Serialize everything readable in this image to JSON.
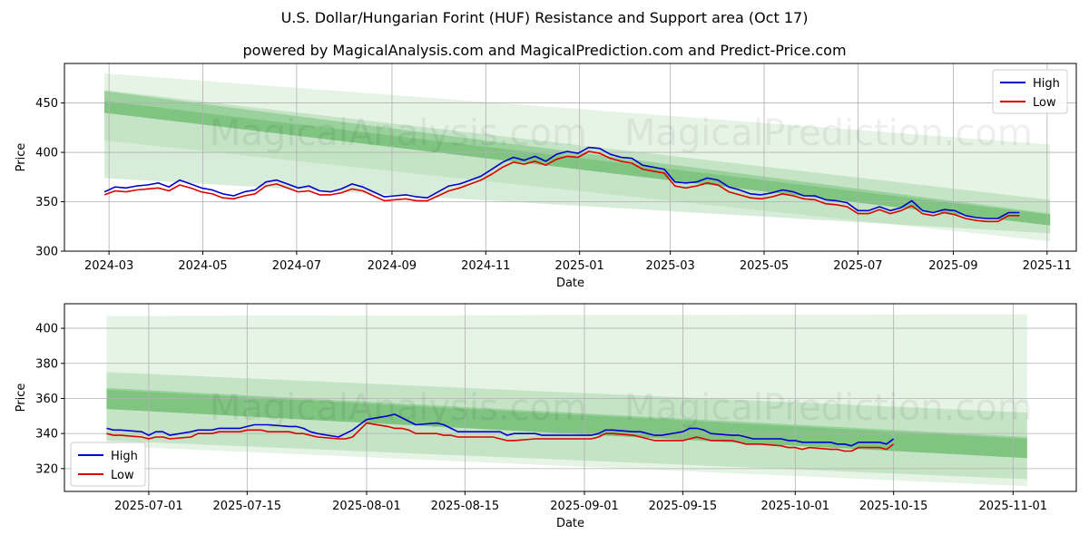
{
  "title": "U.S. Dollar/Hungarian Forint (HUF) Resistance and Support area (Oct 17)",
  "subtitle": "powered by MagicalAnalysis.com and MagicalPrediction.com and Predict-Price.com",
  "watermarks": [
    "MagicalAnalysis.com",
    "MagicalPrediction.com"
  ],
  "colors": {
    "high": "#0000cc",
    "low": "#dd0000",
    "band": "#4caf50",
    "grid": "#b0b0b0"
  },
  "chart_data": [
    {
      "type": "line",
      "xlabel": "Date",
      "ylabel": "Price",
      "xlim": [
        "2024-02-01",
        "2025-11-20"
      ],
      "ylim": [
        300,
        490
      ],
      "xticks": [
        "2024-03",
        "2024-05",
        "2024-07",
        "2024-09",
        "2024-11",
        "2025-01",
        "2025-03",
        "2025-05",
        "2025-07",
        "2025-09",
        "2025-11"
      ],
      "yticks": [
        300,
        350,
        400,
        450
      ],
      "legend": {
        "position": "top-right",
        "entries": [
          "High",
          "Low"
        ]
      },
      "bands": [
        {
          "x": [
            "2024-02-27",
            "2025-11-03"
          ],
          "upper": [
            480,
            408
          ],
          "lower": [
            412,
            310
          ]
        },
        {
          "x": [
            "2024-02-27",
            "2025-11-03"
          ],
          "upper": [
            463,
            352
          ],
          "lower": [
            374,
            318
          ]
        },
        {
          "x": [
            "2024-02-27",
            "2025-11-03"
          ],
          "upper": [
            462,
            338
          ],
          "lower": [
            440,
            326
          ]
        },
        {
          "x": [
            "2024-02-27",
            "2025-11-03"
          ],
          "upper": [
            452,
            337
          ],
          "lower": [
            440,
            326
          ]
        }
      ],
      "series": [
        {
          "name": "High",
          "x": [
            "2024-02-27",
            "2024-03-05",
            "2024-03-12",
            "2024-03-19",
            "2024-03-26",
            "2024-04-02",
            "2024-04-09",
            "2024-04-16",
            "2024-04-23",
            "2024-04-30",
            "2024-05-07",
            "2024-05-14",
            "2024-05-21",
            "2024-05-28",
            "2024-06-04",
            "2024-06-11",
            "2024-06-18",
            "2024-06-25",
            "2024-07-02",
            "2024-07-09",
            "2024-07-16",
            "2024-07-23",
            "2024-07-30",
            "2024-08-06",
            "2024-08-13",
            "2024-08-20",
            "2024-08-27",
            "2024-09-03",
            "2024-09-10",
            "2024-09-17",
            "2024-09-24",
            "2024-10-01",
            "2024-10-08",
            "2024-10-15",
            "2024-10-22",
            "2024-10-29",
            "2024-11-05",
            "2024-11-12",
            "2024-11-19",
            "2024-11-26",
            "2024-12-03",
            "2024-12-10",
            "2024-12-17",
            "2024-12-24",
            "2024-12-31",
            "2025-01-07",
            "2025-01-14",
            "2025-01-21",
            "2025-01-28",
            "2025-02-04",
            "2025-02-11",
            "2025-02-18",
            "2025-02-25",
            "2025-03-04",
            "2025-03-11",
            "2025-03-18",
            "2025-03-25",
            "2025-04-01",
            "2025-04-08",
            "2025-04-15",
            "2025-04-22",
            "2025-04-29",
            "2025-05-06",
            "2025-05-13",
            "2025-05-20",
            "2025-05-27",
            "2025-06-03",
            "2025-06-10",
            "2025-06-17",
            "2025-06-24",
            "2025-07-01",
            "2025-07-08",
            "2025-07-15",
            "2025-07-22",
            "2025-07-29",
            "2025-08-05",
            "2025-08-12",
            "2025-08-19",
            "2025-08-26",
            "2025-09-02",
            "2025-09-09",
            "2025-09-16",
            "2025-09-23",
            "2025-09-30",
            "2025-10-07",
            "2025-10-14"
          ],
          "values": [
            360,
            365,
            364,
            366,
            367,
            369,
            365,
            372,
            368,
            364,
            362,
            358,
            356,
            360,
            362,
            370,
            372,
            368,
            364,
            366,
            361,
            360,
            363,
            368,
            365,
            360,
            355,
            356,
            357,
            355,
            354,
            360,
            366,
            368,
            372,
            376,
            383,
            390,
            395,
            392,
            396,
            391,
            398,
            401,
            399,
            405,
            404,
            398,
            395,
            394,
            387,
            385,
            383,
            370,
            369,
            370,
            374,
            372,
            365,
            362,
            358,
            357,
            359,
            362,
            360,
            356,
            356,
            352,
            351,
            349,
            341,
            341,
            345,
            341,
            344,
            351,
            341,
            339,
            342,
            341,
            336,
            334,
            333,
            333,
            339,
            339
          ]
        },
        {
          "name": "Low",
          "x": [
            "2024-02-27",
            "2024-03-05",
            "2024-03-12",
            "2024-03-19",
            "2024-03-26",
            "2024-04-02",
            "2024-04-09",
            "2024-04-16",
            "2024-04-23",
            "2024-04-30",
            "2024-05-07",
            "2024-05-14",
            "2024-05-21",
            "2024-05-28",
            "2024-06-04",
            "2024-06-11",
            "2024-06-18",
            "2024-06-25",
            "2024-07-02",
            "2024-07-09",
            "2024-07-16",
            "2024-07-23",
            "2024-07-30",
            "2024-08-06",
            "2024-08-13",
            "2024-08-20",
            "2024-08-27",
            "2024-09-03",
            "2024-09-10",
            "2024-09-17",
            "2024-09-24",
            "2024-10-01",
            "2024-10-08",
            "2024-10-15",
            "2024-10-22",
            "2024-10-29",
            "2024-11-05",
            "2024-11-12",
            "2024-11-19",
            "2024-11-26",
            "2024-12-03",
            "2024-12-10",
            "2024-12-17",
            "2024-12-24",
            "2024-12-31",
            "2025-01-07",
            "2025-01-14",
            "2025-01-21",
            "2025-01-28",
            "2025-02-04",
            "2025-02-11",
            "2025-02-18",
            "2025-02-25",
            "2025-03-04",
            "2025-03-11",
            "2025-03-18",
            "2025-03-25",
            "2025-04-01",
            "2025-04-08",
            "2025-04-15",
            "2025-04-22",
            "2025-04-29",
            "2025-05-06",
            "2025-05-13",
            "2025-05-20",
            "2025-05-27",
            "2025-06-03",
            "2025-06-10",
            "2025-06-17",
            "2025-06-24",
            "2025-07-01",
            "2025-07-08",
            "2025-07-15",
            "2025-07-22",
            "2025-07-29",
            "2025-08-05",
            "2025-08-12",
            "2025-08-19",
            "2025-08-26",
            "2025-09-02",
            "2025-09-09",
            "2025-09-16",
            "2025-09-23",
            "2025-09-30",
            "2025-10-07",
            "2025-10-14"
          ],
          "values": [
            357,
            361,
            360,
            362,
            363,
            364,
            361,
            367,
            364,
            360,
            358,
            354,
            353,
            356,
            358,
            366,
            368,
            364,
            360,
            361,
            357,
            357,
            359,
            363,
            361,
            356,
            351,
            352,
            353,
            351,
            351,
            356,
            361,
            364,
            368,
            372,
            378,
            385,
            390,
            388,
            391,
            387,
            393,
            396,
            395,
            401,
            399,
            394,
            391,
            389,
            383,
            381,
            379,
            366,
            364,
            366,
            369,
            367,
            360,
            357,
            354,
            353,
            355,
            358,
            356,
            353,
            352,
            348,
            347,
            345,
            338,
            338,
            342,
            338,
            341,
            346,
            338,
            336,
            339,
            337,
            333,
            331,
            330,
            330,
            336,
            336
          ]
        }
      ]
    },
    {
      "type": "line",
      "xlabel": "Date",
      "ylabel": "Price",
      "xlim": [
        "2025-06-19",
        "2025-11-10"
      ],
      "ylim": [
        307,
        414
      ],
      "xticks": [
        "2025-07-01",
        "2025-07-15",
        "2025-08-01",
        "2025-08-15",
        "2025-09-01",
        "2025-09-15",
        "2025-10-01",
        "2025-10-15",
        "2025-11-01"
      ],
      "yticks": [
        320,
        340,
        360,
        380,
        400
      ],
      "legend": {
        "position": "bottom-left",
        "entries": [
          "High",
          "Low"
        ]
      },
      "bands": [
        {
          "x": [
            "2025-06-25",
            "2025-11-03"
          ],
          "upper": [
            407,
            408
          ],
          "lower": [
            333,
            310
          ]
        },
        {
          "x": [
            "2025-06-25",
            "2025-11-03"
          ],
          "upper": [
            375,
            352
          ],
          "lower": [
            336,
            314
          ]
        },
        {
          "x": [
            "2025-06-25",
            "2025-11-03"
          ],
          "upper": [
            366,
            338
          ],
          "lower": [
            354,
            326
          ]
        },
        {
          "x": [
            "2025-06-25",
            "2025-11-03"
          ],
          "upper": [
            365,
            337
          ],
          "lower": [
            354,
            326
          ]
        }
      ],
      "series": [
        {
          "name": "High",
          "x": [
            "2025-06-25",
            "2025-06-26",
            "2025-06-27",
            "2025-06-30",
            "2025-07-01",
            "2025-07-02",
            "2025-07-03",
            "2025-07-04",
            "2025-07-07",
            "2025-07-08",
            "2025-07-09",
            "2025-07-10",
            "2025-07-11",
            "2025-07-14",
            "2025-07-15",
            "2025-07-16",
            "2025-07-17",
            "2025-07-18",
            "2025-07-21",
            "2025-07-22",
            "2025-07-23",
            "2025-07-24",
            "2025-07-25",
            "2025-07-28",
            "2025-07-29",
            "2025-07-30",
            "2025-07-31",
            "2025-08-01",
            "2025-08-04",
            "2025-08-05",
            "2025-08-06",
            "2025-08-07",
            "2025-08-08",
            "2025-08-11",
            "2025-08-12",
            "2025-08-13",
            "2025-08-14",
            "2025-08-15",
            "2025-08-18",
            "2025-08-19",
            "2025-08-20",
            "2025-08-21",
            "2025-08-22",
            "2025-08-25",
            "2025-08-26",
            "2025-08-27",
            "2025-08-28",
            "2025-08-29",
            "2025-09-01",
            "2025-09-02",
            "2025-09-03",
            "2025-09-04",
            "2025-09-05",
            "2025-09-08",
            "2025-09-09",
            "2025-09-10",
            "2025-09-11",
            "2025-09-12",
            "2025-09-15",
            "2025-09-16",
            "2025-09-17",
            "2025-09-18",
            "2025-09-19",
            "2025-09-22",
            "2025-09-23",
            "2025-09-24",
            "2025-09-25",
            "2025-09-26",
            "2025-09-29",
            "2025-09-30",
            "2025-10-01",
            "2025-10-02",
            "2025-10-03",
            "2025-10-06",
            "2025-10-07",
            "2025-10-08",
            "2025-10-09",
            "2025-10-10",
            "2025-10-13",
            "2025-10-14",
            "2025-10-15"
          ],
          "values": [
            343,
            342,
            342,
            341,
            339,
            341,
            341,
            339,
            341,
            342,
            342,
            342,
            343,
            343,
            344,
            345,
            345,
            345,
            344,
            344,
            343,
            341,
            340,
            338,
            340,
            342,
            345,
            348,
            350,
            351,
            349,
            347,
            345,
            346,
            345,
            343,
            341,
            341,
            341,
            341,
            341,
            339,
            340,
            340,
            339,
            339,
            339,
            339,
            339,
            339,
            340,
            342,
            342,
            341,
            341,
            340,
            339,
            339,
            341,
            343,
            343,
            342,
            340,
            339,
            339,
            338,
            337,
            337,
            337,
            336,
            336,
            335,
            335,
            335,
            334,
            334,
            333,
            335,
            335,
            334,
            337
          ]
        },
        {
          "name": "Low",
          "x": [
            "2025-06-25",
            "2025-06-26",
            "2025-06-27",
            "2025-06-30",
            "2025-07-01",
            "2025-07-02",
            "2025-07-03",
            "2025-07-04",
            "2025-07-07",
            "2025-07-08",
            "2025-07-09",
            "2025-07-10",
            "2025-07-11",
            "2025-07-14",
            "2025-07-15",
            "2025-07-16",
            "2025-07-17",
            "2025-07-18",
            "2025-07-21",
            "2025-07-22",
            "2025-07-23",
            "2025-07-24",
            "2025-07-25",
            "2025-07-28",
            "2025-07-29",
            "2025-07-30",
            "2025-07-31",
            "2025-08-01",
            "2025-08-04",
            "2025-08-05",
            "2025-08-06",
            "2025-08-07",
            "2025-08-08",
            "2025-08-11",
            "2025-08-12",
            "2025-08-13",
            "2025-08-14",
            "2025-08-15",
            "2025-08-18",
            "2025-08-19",
            "2025-08-20",
            "2025-08-21",
            "2025-08-22",
            "2025-08-25",
            "2025-08-26",
            "2025-08-27",
            "2025-08-28",
            "2025-08-29",
            "2025-09-01",
            "2025-09-02",
            "2025-09-03",
            "2025-09-04",
            "2025-09-05",
            "2025-09-08",
            "2025-09-09",
            "2025-09-10",
            "2025-09-11",
            "2025-09-12",
            "2025-09-15",
            "2025-09-16",
            "2025-09-17",
            "2025-09-18",
            "2025-09-19",
            "2025-09-22",
            "2025-09-23",
            "2025-09-24",
            "2025-09-25",
            "2025-09-26",
            "2025-09-29",
            "2025-09-30",
            "2025-10-01",
            "2025-10-02",
            "2025-10-03",
            "2025-10-06",
            "2025-10-07",
            "2025-10-08",
            "2025-10-09",
            "2025-10-10",
            "2025-10-13",
            "2025-10-14",
            "2025-10-15"
          ],
          "values": [
            340,
            339,
            339,
            338,
            337,
            338,
            338,
            337,
            338,
            340,
            340,
            340,
            341,
            341,
            342,
            342,
            342,
            341,
            341,
            340,
            340,
            339,
            338,
            337,
            337,
            338,
            342,
            346,
            344,
            343,
            343,
            342,
            340,
            340,
            339,
            339,
            338,
            338,
            338,
            338,
            337,
            336,
            336,
            337,
            337,
            337,
            337,
            337,
            337,
            337,
            338,
            340,
            340,
            339,
            338,
            337,
            336,
            336,
            336,
            337,
            338,
            337,
            336,
            336,
            335,
            334,
            334,
            334,
            333,
            332,
            332,
            331,
            332,
            331,
            331,
            330,
            330,
            332,
            332,
            331,
            334
          ]
        }
      ]
    }
  ]
}
